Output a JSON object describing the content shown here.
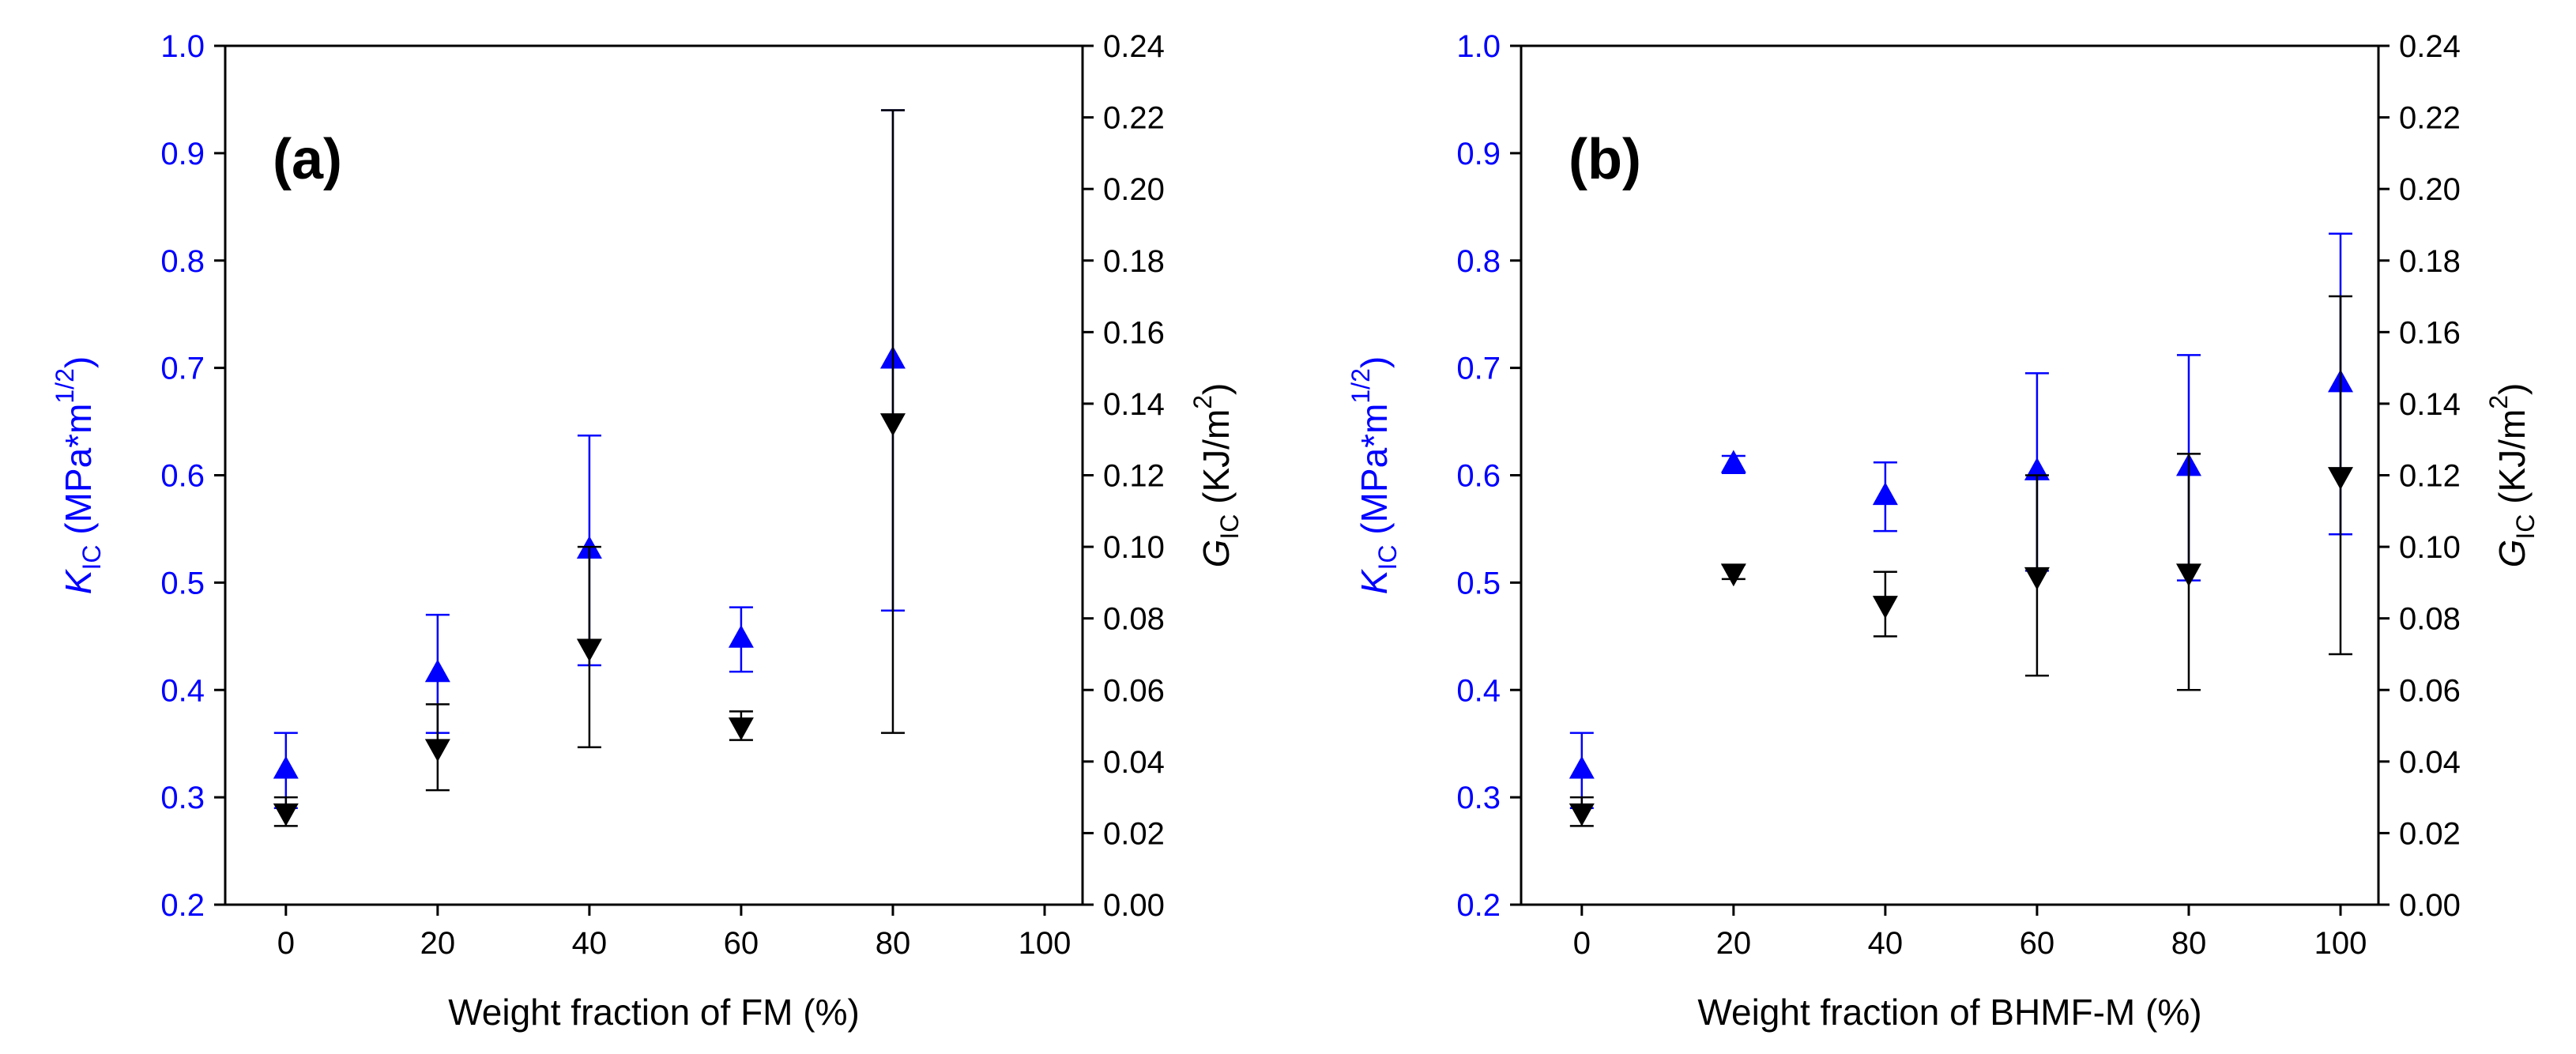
{
  "colors": {
    "kic": "#0000ff",
    "gic": "#000000",
    "axis": "#000000",
    "background": "#ffffff"
  },
  "chart_data": [
    {
      "type": "scatter",
      "panel_label": "(a)",
      "xlabel": "Weight fraction of FM (%)",
      "ylabel_left": {
        "symbol": "K",
        "sub": "IC",
        "unit_pre": " (MPa*m",
        "sup": "1/2",
        "unit_post": ")"
      },
      "ylabel_right": {
        "symbol": "G",
        "sub": "IC",
        "unit_pre": " (KJ/m",
        "sup": "2",
        "unit_post": ")"
      },
      "xlim": [
        -8,
        105
      ],
      "ylim_left": [
        0.2,
        1.0
      ],
      "ylim_right": [
        0.0,
        0.24
      ],
      "x_ticks": [
        "0",
        "20",
        "40",
        "60",
        "80",
        "100"
      ],
      "y_left_ticks": [
        "0.2",
        "0.3",
        "0.4",
        "0.5",
        "0.6",
        "0.7",
        "0.8",
        "0.9",
        "1.0"
      ],
      "y_right_ticks": [
        "0.00",
        "0.02",
        "0.04",
        "0.06",
        "0.08",
        "0.10",
        "0.12",
        "0.14",
        "0.16",
        "0.18",
        "0.20",
        "0.22",
        "0.24"
      ],
      "series": [
        {
          "name": "K_IC",
          "axis": "left",
          "marker": "triangle-up",
          "points": [
            {
              "x": 0,
              "y": 0.325,
              "err": 0.035
            },
            {
              "x": 20,
              "y": 0.415,
              "err": 0.055
            },
            {
              "x": 40,
              "y": 0.53,
              "err": 0.107
            },
            {
              "x": 60,
              "y": 0.447,
              "err": 0.03
            },
            {
              "x": 80,
              "y": 0.707,
              "err": 0.233
            }
          ]
        },
        {
          "name": "G_IC",
          "axis": "right",
          "marker": "triangle-down",
          "points": [
            {
              "x": 0,
              "y": 0.026,
              "err": 0.004
            },
            {
              "x": 20,
              "y": 0.044,
              "err": 0.012
            },
            {
              "x": 40,
              "y": 0.072,
              "err": 0.028
            },
            {
              "x": 60,
              "y": 0.05,
              "err": 0.004
            },
            {
              "x": 80,
              "y": 0.135,
              "err": 0.087
            }
          ]
        }
      ]
    },
    {
      "type": "scatter",
      "panel_label": "(b)",
      "xlabel": "Weight fraction of BHMF-M (%)",
      "ylabel_left": {
        "symbol": "K",
        "sub": "IC",
        "unit_pre": " (MPa*m",
        "sup": "1/2",
        "unit_post": ")"
      },
      "ylabel_right": {
        "symbol": "G",
        "sub": "IC",
        "unit_pre": " (KJ/m",
        "sup": "2",
        "unit_post": ")"
      },
      "xlim": [
        -8,
        105
      ],
      "ylim_left": [
        0.2,
        1.0
      ],
      "ylim_right": [
        0.0,
        0.24
      ],
      "x_ticks": [
        "0",
        "20",
        "40",
        "60",
        "80",
        "100"
      ],
      "y_left_ticks": [
        "0.2",
        "0.3",
        "0.4",
        "0.5",
        "0.6",
        "0.7",
        "0.8",
        "0.9",
        "1.0"
      ],
      "y_right_ticks": [
        "0.00",
        "0.02",
        "0.04",
        "0.06",
        "0.08",
        "0.10",
        "0.12",
        "0.14",
        "0.16",
        "0.18",
        "0.20",
        "0.22",
        "0.24"
      ],
      "series": [
        {
          "name": "K_IC",
          "axis": "left",
          "marker": "triangle-up",
          "points": [
            {
              "x": 0,
              "y": 0.325,
              "err": 0.035
            },
            {
              "x": 20,
              "y": 0.61,
              "err": 0.008
            },
            {
              "x": 40,
              "y": 0.58,
              "err": 0.032
            },
            {
              "x": 60,
              "y": 0.603,
              "err": 0.092
            },
            {
              "x": 80,
              "y": 0.607,
              "err": 0.105
            },
            {
              "x": 100,
              "y": 0.685,
              "err": 0.14
            }
          ]
        },
        {
          "name": "G_IC",
          "axis": "right",
          "marker": "triangle-down",
          "points": [
            {
              "x": 0,
              "y": 0.026,
              "err": 0.004
            },
            {
              "x": 20,
              "y": 0.093,
              "err": 0.002
            },
            {
              "x": 40,
              "y": 0.084,
              "err": 0.009
            },
            {
              "x": 60,
              "y": 0.092,
              "err": 0.028
            },
            {
              "x": 80,
              "y": 0.093,
              "err": 0.033
            },
            {
              "x": 100,
              "y": 0.12,
              "err": 0.05
            }
          ]
        }
      ]
    }
  ]
}
